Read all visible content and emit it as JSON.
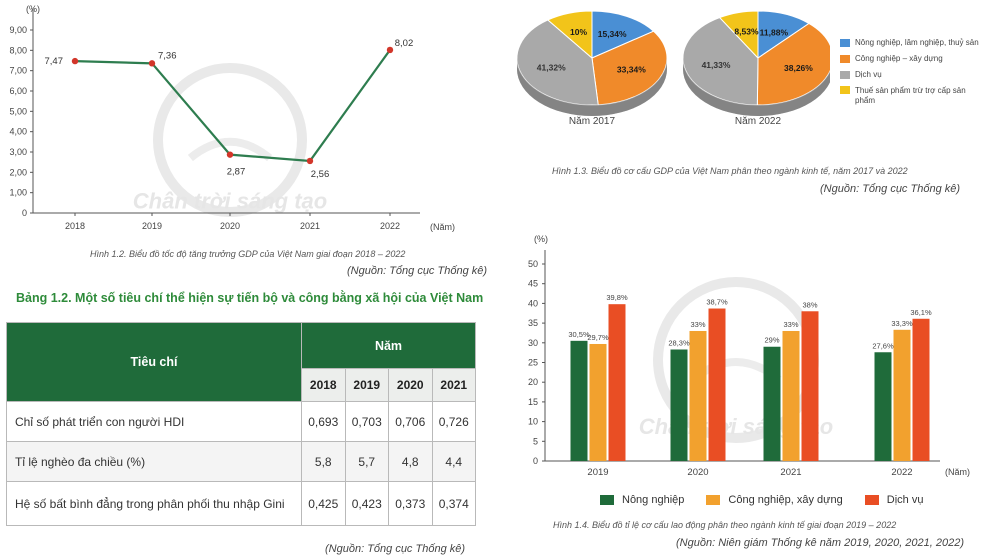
{
  "chart_data": [
    {
      "type": "line",
      "title": "Hình 1.2. Biểu đồ tốc độ tăng trưởng GDP của Việt Nam giai đoạn 2018 – 2022",
      "ylabel": "(%)",
      "xlabel": "(Năm)",
      "ylim": [
        0,
        9
      ],
      "yticks": [
        "0",
        "1,00",
        "2,00",
        "3,00",
        "4,00",
        "5,00",
        "6,00",
        "7,00",
        "8,00",
        "9,00"
      ],
      "categories": [
        "2018",
        "2019",
        "2020",
        "2021",
        "2022"
      ],
      "values": [
        7.47,
        7.36,
        2.87,
        2.56,
        8.02
      ],
      "data_labels": [
        "7,47",
        "7,36",
        "2,87",
        "2,56",
        "8,02"
      ],
      "color": "#2e7d4f",
      "source": "(Nguồn: Tổng cục Thống kê)",
      "watermark": "Chân trời sáng tạo"
    },
    {
      "type": "pie",
      "title": "Hình 1.3. Biểu đồ cơ cấu GDP của Việt Nam phân theo ngành kinh tế, năm 2017 và 2022",
      "legend": [
        "Nông nghiệp, lâm nghiệp, thuỷ sản",
        "Công nghiệp – xây dựng",
        "Dịch vụ",
        "Thuế sản phẩm trừ trợ cấp sản phẩm"
      ],
      "colors": [
        "#4a8fd4",
        "#f08a2a",
        "#a9a9a9",
        "#f2c41a"
      ],
      "pies": [
        {
          "name": "Năm 2017",
          "values": [
            15.34,
            33.34,
            41.32,
            10
          ],
          "labels": [
            "15,34%",
            "33,34%",
            "41,32%",
            "10%"
          ]
        },
        {
          "name": "Năm 2022",
          "values": [
            11.88,
            38.26,
            41.33,
            8.53
          ],
          "labels": [
            "11,88%",
            "38,26%",
            "41,33%",
            "8,53%"
          ]
        }
      ],
      "source": "(Nguồn: Tổng cục Thống kê)"
    },
    {
      "type": "bar",
      "title": "Hình 1.4. Biểu đồ tỉ lệ cơ cấu lao động phân theo ngành kinh tế giai đoạn 2019 – 2022",
      "ylabel": "(%)",
      "xlabel": "(Năm)",
      "ylim": [
        0,
        50
      ],
      "yticks": [
        "0",
        "5",
        "10",
        "15",
        "20",
        "25",
        "30",
        "35",
        "40",
        "45",
        "50"
      ],
      "categories": [
        "2019",
        "2020",
        "2021",
        "2022"
      ],
      "series": [
        {
          "name": "Nông nghiệp",
          "color": "#1f6b3a",
          "values": [
            30.5,
            28.3,
            29,
            27.6
          ],
          "labels": [
            "30,5%",
            "28,3%",
            "29%",
            "27,6%"
          ]
        },
        {
          "name": "Công nghiệp, xây dựng",
          "color": "#f2a12e",
          "values": [
            29.7,
            33,
            33,
            33.3
          ],
          "labels": [
            "29,7%",
            "33%",
            "33%",
            "33,3%"
          ]
        },
        {
          "name": "Dịch vụ",
          "color": "#e94e24",
          "values": [
            39.8,
            38.7,
            38,
            36.1
          ],
          "labels": [
            "39,8%",
            "38,7%",
            "38%",
            "36,1%"
          ]
        }
      ],
      "source": "(Nguồn: Niên giám Thống kê năm 2019, 2020, 2021, 2022)",
      "watermark": "Chân trời sáng tạo"
    }
  ],
  "table": {
    "title": "Bảng 1.2. Một số tiêu chí thể hiện sự tiến bộ và công bằng xã hội của Việt Nam",
    "header_criteria": "Tiêu chí",
    "header_year": "Năm",
    "years": [
      "2018",
      "2019",
      "2020",
      "2021"
    ],
    "rows": [
      {
        "criteria": "Chỉ số phát triển con người HDI",
        "values": [
          "0,693",
          "0,703",
          "0,706",
          "0,726"
        ]
      },
      {
        "criteria": "Tỉ lệ nghèo đa chiều (%)",
        "values": [
          "5,8",
          "5,7",
          "4,8",
          "4,4"
        ]
      },
      {
        "criteria": "Hệ số bất bình đẳng trong phân phối thu nhập Gini",
        "values": [
          "0,425",
          "0,423",
          "0,373",
          "0,374"
        ]
      }
    ],
    "source": "(Nguồn: Tổng cục Thống kê)"
  }
}
